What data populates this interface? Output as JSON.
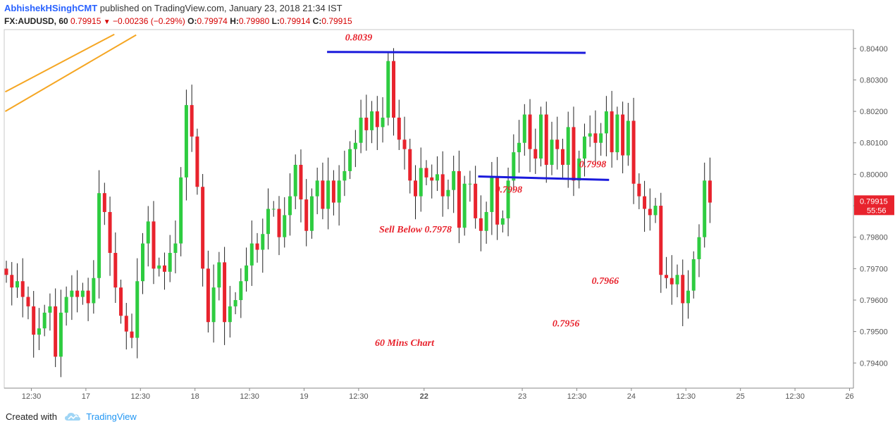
{
  "header": {
    "author": "AbhishekHSinghCMT",
    "published": "published on TradingView.com, January 23, 2018 21:34 IST",
    "symbol": "FX:AUDUSD, 60",
    "last": "0.79915",
    "change": "−0.00236 (−0.29%)",
    "o_label": "O:",
    "o": "0.79974",
    "h_label": "H:",
    "h": "0.79980",
    "l_label": "L:",
    "l": "0.79914",
    "c_label": "C:",
    "c": "0.79915"
  },
  "footer": {
    "created_with": "Created with",
    "brand": "TradingView"
  },
  "colors": {
    "up": "#2ecc40",
    "down": "#e8232d",
    "hline": "#1a1adc",
    "trend": "#f5a623",
    "annotation": "#e8232d",
    "axis_text": "#555555"
  },
  "chart_data": {
    "type": "candlestick",
    "ylim": [
      0.7932,
      0.8046
    ],
    "xlim": [
      0,
      149
    ],
    "y_ticks": [
      {
        "value": 0.804,
        "label": "0.80400"
      },
      {
        "value": 0.803,
        "label": "0.80300"
      },
      {
        "value": 0.802,
        "label": "0.80200"
      },
      {
        "value": 0.801,
        "label": "0.80100"
      },
      {
        "value": 0.8,
        "label": "0.80000"
      },
      {
        "value": 0.799,
        "label": "0.79900"
      },
      {
        "value": 0.798,
        "label": "0.79800"
      },
      {
        "value": 0.797,
        "label": "0.79700"
      },
      {
        "value": 0.796,
        "label": "0.79600"
      },
      {
        "value": 0.795,
        "label": "0.79500"
      },
      {
        "value": 0.794,
        "label": "0.79400"
      }
    ],
    "x_ticks": [
      {
        "index": 2,
        "label": "12:30",
        "bold": false
      },
      {
        "index": 12,
        "label": "17",
        "bold": false
      },
      {
        "index": 22,
        "label": "12:30",
        "bold": false
      },
      {
        "index": 32,
        "label": "18",
        "bold": false
      },
      {
        "index": 42,
        "label": "12:30",
        "bold": false
      },
      {
        "index": 52,
        "label": "19",
        "bold": false
      },
      {
        "index": 62,
        "label": "12:30",
        "bold": false
      },
      {
        "index": 74,
        "label": "22",
        "bold": true
      },
      {
        "index": 92,
        "label": "23",
        "bold": false
      },
      {
        "index": 102,
        "label": "12:30",
        "bold": false
      },
      {
        "index": 112,
        "label": "24",
        "bold": false
      },
      {
        "index": 122,
        "label": "12:30",
        "bold": false
      },
      {
        "index": 132,
        "label": "25",
        "bold": false
      },
      {
        "index": 142,
        "label": "12:30",
        "bold": false
      },
      {
        "index": 152,
        "label": "26",
        "bold": false
      }
    ],
    "closes": [
      0.7968,
      0.7964,
      0.7966,
      0.7961,
      0.7958,
      0.7949,
      0.7951,
      0.7956,
      0.7958,
      0.7942,
      0.7956,
      0.7961,
      0.7963,
      0.7961,
      0.7963,
      0.7959,
      0.7967,
      0.7994,
      0.7988,
      0.7975,
      0.7964,
      0.7955,
      0.795,
      0.7948,
      0.7966,
      0.7978,
      0.7985,
      0.797,
      0.7971,
      0.7969,
      0.7975,
      0.7978,
      0.7999,
      0.8022,
      0.8012,
      0.7996,
      0.797,
      0.7953,
      0.7964,
      0.7972,
      0.7953,
      0.7958,
      0.796,
      0.7966,
      0.7971,
      0.7978,
      0.7976,
      0.7981,
      0.7989,
      0.7989,
      0.798,
      0.7987,
      0.7993,
      0.8003,
      0.7992,
      0.7982,
      0.7993,
      0.7998,
      0.7989,
      0.7998,
      0.7991,
      0.7998,
      0.8001,
      0.8008,
      0.801,
      0.8018,
      0.8014,
      0.802,
      0.8015,
      0.8018,
      0.8036,
      0.8018,
      0.8011,
      0.8008,
      0.7998,
      0.7993,
      0.8002,
      0.7999,
      0.7998,
      0.8,
      0.7993,
      0.7995,
      0.8001,
      0.7983,
      0.7997,
      0.7997,
      0.7986,
      0.7982,
      0.7988,
      0.7999,
      0.7984,
      0.7986,
      0.7998,
      0.8007,
      0.801,
      0.8019,
      0.8008,
      0.8005,
      0.8019,
      0.8003,
      0.8011,
      0.8008,
      0.8003,
      0.8015,
      0.7998,
      0.8005,
      0.8012,
      0.8013,
      0.801,
      0.8013,
      0.802,
      0.8007,
      0.8019,
      0.8006,
      0.8017,
      0.7997,
      0.7993,
      0.7989,
      0.7987,
      0.799,
      0.7968,
      0.7967,
      0.7965,
      0.7968,
      0.7959,
      0.7963,
      0.7973,
      0.798,
      0.7998,
      0.7991
    ],
    "hlines": [
      {
        "x1": 58.8,
        "y1": 0.80389,
        "x2": 106.2,
        "y2": 0.80386
      },
      {
        "x1": 86.5,
        "y1": 0.79993,
        "x2": 110.5,
        "y2": 0.79982
      }
    ],
    "trendlines": [
      {
        "x1": -0.2,
        "y1": 0.80262,
        "x2": 19.8,
        "y2": 0.80445
      },
      {
        "x1": -0.2,
        "y1": 0.802,
        "x2": 23.8,
        "y2": 0.80443
      }
    ],
    "annotations": [
      {
        "text": "0.8039",
        "x": 64.6,
        "y": 0.80425
      },
      {
        "text": "0.7998",
        "x": 107.5,
        "y": 0.80022
      },
      {
        "text": "0.7998",
        "x": 92.1,
        "y": 0.79942
      },
      {
        "text": "Sell Below 0.7978",
        "x": 75.0,
        "y": 0.79815
      },
      {
        "text": "0.7966",
        "x": 109.8,
        "y": 0.79651
      },
      {
        "text": "0.7956",
        "x": 102.6,
        "y": 0.79516
      },
      {
        "text": "60 Mins Chart",
        "x": 73.0,
        "y": 0.79454
      }
    ],
    "last_price": {
      "label": "0.79915",
      "value": 0.79915,
      "countdown": "55:56"
    }
  }
}
